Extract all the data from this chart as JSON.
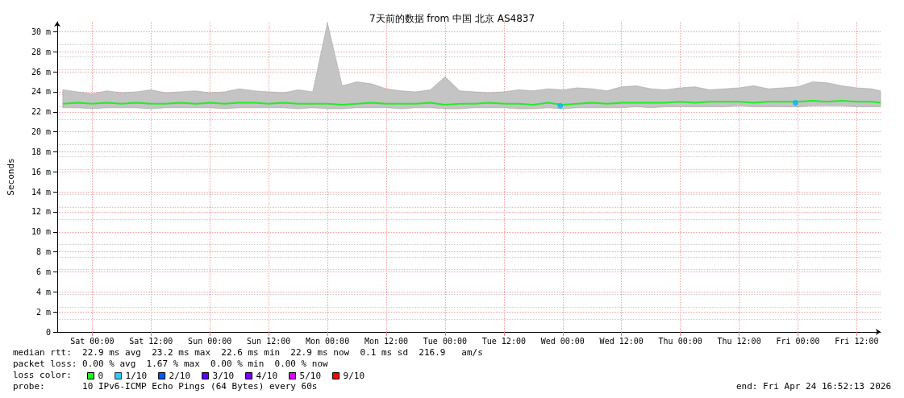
{
  "chart_data": {
    "type": "line",
    "title": "7天前的数据 from 中国 北京 AS4837",
    "ylabel": "Seconds",
    "x": [
      "2026-04-17T18:00",
      "2026-04-17T21:00",
      "2026-04-18T00:00",
      "2026-04-18T03:00",
      "2026-04-18T06:00",
      "2026-04-18T09:00",
      "2026-04-18T12:00",
      "2026-04-18T15:00",
      "2026-04-18T18:00",
      "2026-04-18T21:00",
      "2026-04-19T00:00",
      "2026-04-19T03:00",
      "2026-04-19T06:00",
      "2026-04-19T09:00",
      "2026-04-19T12:00",
      "2026-04-19T15:00",
      "2026-04-19T18:00",
      "2026-04-19T21:00",
      "2026-04-20T00:00",
      "2026-04-20T03:00",
      "2026-04-20T06:00",
      "2026-04-20T09:00",
      "2026-04-20T12:00",
      "2026-04-20T15:00",
      "2026-04-20T18:00",
      "2026-04-20T21:00",
      "2026-04-21T00:00",
      "2026-04-21T03:00",
      "2026-04-21T06:00",
      "2026-04-21T09:00",
      "2026-04-21T12:00",
      "2026-04-21T15:00",
      "2026-04-21T18:00",
      "2026-04-21T21:00",
      "2026-04-22T00:00",
      "2026-04-22T03:00",
      "2026-04-22T06:00",
      "2026-04-22T09:00",
      "2026-04-22T12:00",
      "2026-04-22T15:00",
      "2026-04-22T18:00",
      "2026-04-22T21:00",
      "2026-04-23T00:00",
      "2026-04-23T03:00",
      "2026-04-23T06:00",
      "2026-04-23T09:00",
      "2026-04-23T12:00",
      "2026-04-23T15:00",
      "2026-04-23T18:00",
      "2026-04-23T21:00",
      "2026-04-24T00:00",
      "2026-04-24T03:00",
      "2026-04-24T06:00",
      "2026-04-24T09:00",
      "2026-04-24T12:00",
      "2026-04-24T15:00",
      "2026-04-24T16:52"
    ],
    "series": [
      {
        "name": "0",
        "color": "#22ee22",
        "values": [
          22.8,
          22.9,
          22.8,
          22.9,
          22.8,
          22.9,
          22.8,
          22.8,
          22.9,
          22.8,
          22.9,
          22.8,
          22.9,
          22.9,
          22.8,
          22.9,
          22.8,
          22.8,
          22.8,
          22.7,
          22.8,
          22.9,
          22.8,
          22.8,
          22.8,
          22.9,
          22.7,
          22.8,
          22.8,
          22.9,
          22.8,
          22.8,
          22.7,
          22.9,
          22.7,
          22.8,
          22.9,
          22.8,
          22.9,
          22.9,
          22.9,
          22.9,
          23.0,
          22.9,
          23.0,
          23.0,
          23.0,
          22.9,
          23.0,
          23.0,
          23.0,
          23.1,
          23.0,
          23.1,
          23.0,
          23.0,
          22.9
        ],
        "lower": [
          22.4,
          22.4,
          22.3,
          22.4,
          22.4,
          22.4,
          22.3,
          22.4,
          22.4,
          22.4,
          22.4,
          22.3,
          22.4,
          22.4,
          22.4,
          22.4,
          22.3,
          22.4,
          22.3,
          22.3,
          22.4,
          22.4,
          22.4,
          22.3,
          22.4,
          22.4,
          22.3,
          22.3,
          22.4,
          22.4,
          22.4,
          22.3,
          22.3,
          22.4,
          22.3,
          22.4,
          22.4,
          22.4,
          22.4,
          22.5,
          22.4,
          22.5,
          22.5,
          22.5,
          22.5,
          22.5,
          22.6,
          22.5,
          22.5,
          22.5,
          22.5,
          22.6,
          22.6,
          22.6,
          22.5,
          22.5,
          22.5
        ],
        "upper": [
          24.2,
          24.0,
          23.8,
          24.1,
          23.9,
          24.0,
          24.2,
          23.9,
          24.0,
          24.1,
          23.9,
          24.0,
          24.3,
          24.1,
          24.0,
          23.9,
          24.2,
          24.0,
          30.9,
          24.6,
          25.0,
          24.8,
          24.3,
          24.1,
          24.0,
          24.2,
          25.5,
          24.1,
          24.0,
          23.9,
          24.0,
          24.2,
          24.1,
          24.3,
          24.2,
          24.4,
          24.3,
          24.1,
          24.5,
          24.6,
          24.3,
          24.2,
          24.4,
          24.5,
          24.2,
          24.3,
          24.4,
          24.6,
          24.3,
          24.4,
          24.5,
          25.0,
          24.9,
          24.6,
          24.4,
          24.3,
          24.1
        ]
      },
      {
        "name": "1/10",
        "color": "#00b8ff",
        "type": "scatter",
        "marker": "circle",
        "x": [
          "2026-04-21T23:30",
          "2026-04-23T23:30"
        ],
        "values": [
          22.6,
          22.9
        ]
      },
      {
        "name": "2/10",
        "color": "#0059ff",
        "values": [
          null,
          null,
          null,
          null,
          null,
          null,
          null,
          null,
          null,
          null,
          null,
          null,
          null,
          null,
          null,
          null,
          null,
          null,
          null,
          null,
          null,
          null,
          null,
          null,
          null,
          null,
          null,
          null,
          null,
          null,
          null,
          null,
          null,
          null,
          null,
          null,
          null,
          null,
          null,
          null,
          null,
          null,
          null,
          null,
          null,
          null,
          null,
          null,
          null,
          null,
          null,
          null,
          null,
          null,
          null,
          null,
          null
        ]
      },
      {
        "name": "3/10",
        "color": "#5e00ff",
        "values": [
          null,
          null,
          null,
          null,
          null,
          null,
          null,
          null,
          null,
          null,
          null,
          null,
          null,
          null,
          null,
          null,
          null,
          null,
          null,
          null,
          null,
          null,
          null,
          null,
          null,
          null,
          null,
          null,
          null,
          null,
          null,
          null,
          null,
          null,
          null,
          null,
          null,
          null,
          null,
          null,
          null,
          null,
          null,
          null,
          null,
          null,
          null,
          null,
          null,
          null,
          null,
          null,
          null,
          null,
          null,
          null,
          null
        ]
      },
      {
        "name": "4/10",
        "color": "#7e00ff",
        "values": [
          null,
          null,
          null,
          null,
          null,
          null,
          null,
          null,
          null,
          null,
          null,
          null,
          null,
          null,
          null,
          null,
          null,
          null,
          null,
          null,
          null,
          null,
          null,
          null,
          null,
          null,
          null,
          null,
          null,
          null,
          null,
          null,
          null,
          null,
          null,
          null,
          null,
          null,
          null,
          null,
          null,
          null,
          null,
          null,
          null,
          null,
          null,
          null,
          null,
          null,
          null,
          null,
          null,
          null,
          null,
          null,
          null
        ]
      },
      {
        "name": "5/10",
        "color": "#dd00ff",
        "values": [
          null,
          null,
          null,
          null,
          null,
          null,
          null,
          null,
          null,
          null,
          null,
          null,
          null,
          null,
          null,
          null,
          null,
          null,
          null,
          null,
          null,
          null,
          null,
          null,
          null,
          null,
          null,
          null,
          null,
          null,
          null,
          null,
          null,
          null,
          null,
          null,
          null,
          null,
          null,
          null,
          null,
          null,
          null,
          null,
          null,
          null,
          null,
          null,
          null,
          null,
          null,
          null,
          null,
          null,
          null,
          null,
          null
        ]
      },
      {
        "name": "9/10",
        "color": "#ff0000",
        "values": [
          null,
          null,
          null,
          null,
          null,
          null,
          null,
          null,
          null,
          null,
          null,
          null,
          null,
          null,
          null,
          null,
          null,
          null,
          null,
          null,
          null,
          null,
          null,
          null,
          null,
          null,
          null,
          null,
          null,
          null,
          null,
          null,
          null,
          null,
          null,
          null,
          null,
          null,
          null,
          null,
          null,
          null,
          null,
          null,
          null,
          null,
          null,
          null,
          null,
          null,
          null,
          null,
          null,
          null,
          null,
          null,
          null
        ]
      }
    ],
    "xlim": [
      "2026-04-17T16:52",
      "2026-04-24T16:52"
    ],
    "xticks": [
      {
        "value": "2026-04-18T00:00",
        "label": "Sat 00:00"
      },
      {
        "value": "2026-04-18T12:00",
        "label": "Sat 12:00"
      },
      {
        "value": "2026-04-19T00:00",
        "label": "Sun 00:00"
      },
      {
        "value": "2026-04-19T12:00",
        "label": "Sun 12:00"
      },
      {
        "value": "2026-04-20T00:00",
        "label": "Mon 00:00"
      },
      {
        "value": "2026-04-20T12:00",
        "label": "Mon 12:00"
      },
      {
        "value": "2026-04-21T00:00",
        "label": "Tue 00:00"
      },
      {
        "value": "2026-04-21T12:00",
        "label": "Tue 12:00"
      },
      {
        "value": "2026-04-22T00:00",
        "label": "Wed 00:00"
      },
      {
        "value": "2026-04-22T12:00",
        "label": "Wed 12:00"
      },
      {
        "value": "2026-04-23T00:00",
        "label": "Thu 00:00"
      },
      {
        "value": "2026-04-23T12:00",
        "label": "Thu 12:00"
      },
      {
        "value": "2026-04-24T00:00",
        "label": "Fri 00:00"
      },
      {
        "value": "2026-04-24T12:00",
        "label": "Fri 12:00"
      }
    ],
    "ylim": [
      0,
      31
    ],
    "yticks": [
      0,
      {
        "value": 2,
        "label": "2 m"
      },
      {
        "value": 4,
        "label": "4 m"
      },
      {
        "value": 6,
        "label": "6 m"
      },
      {
        "value": 8,
        "label": "8 m"
      },
      {
        "value": 10,
        "label": "10 m"
      },
      {
        "value": 12,
        "label": "12 m"
      },
      {
        "value": 14,
        "label": "14 m"
      },
      {
        "value": 16,
        "label": "16 m"
      },
      {
        "value": 18,
        "label": "18 m"
      },
      {
        "value": 20,
        "label": "20 m"
      },
      {
        "value": 22,
        "label": "22 m"
      },
      {
        "value": 24,
        "label": "24 m"
      },
      {
        "value": 26,
        "label": "26 m"
      },
      {
        "value": 28,
        "label": "28 m"
      },
      {
        "value": 30,
        "label": "30 m"
      }
    ],
    "grid": true,
    "legend": "bottom left",
    "marker": "none",
    "line_style": "solid",
    "annotations": [
      "median rtt:  22.9 ms avg  23.2 ms max  22.6 ms min  22.9 ms now  0.1 ms sd  216.9   am/s",
      "packet loss: 0.00 % avg  1.67 % max  0.00 % min  0.00 % now",
      "loss color:",
      "probe:       10 IPv6-ICMP Echo Pings (64 Bytes) every 60s",
      "end: Fri Apr 24 16:52:13 2026"
    ]
  }
}
